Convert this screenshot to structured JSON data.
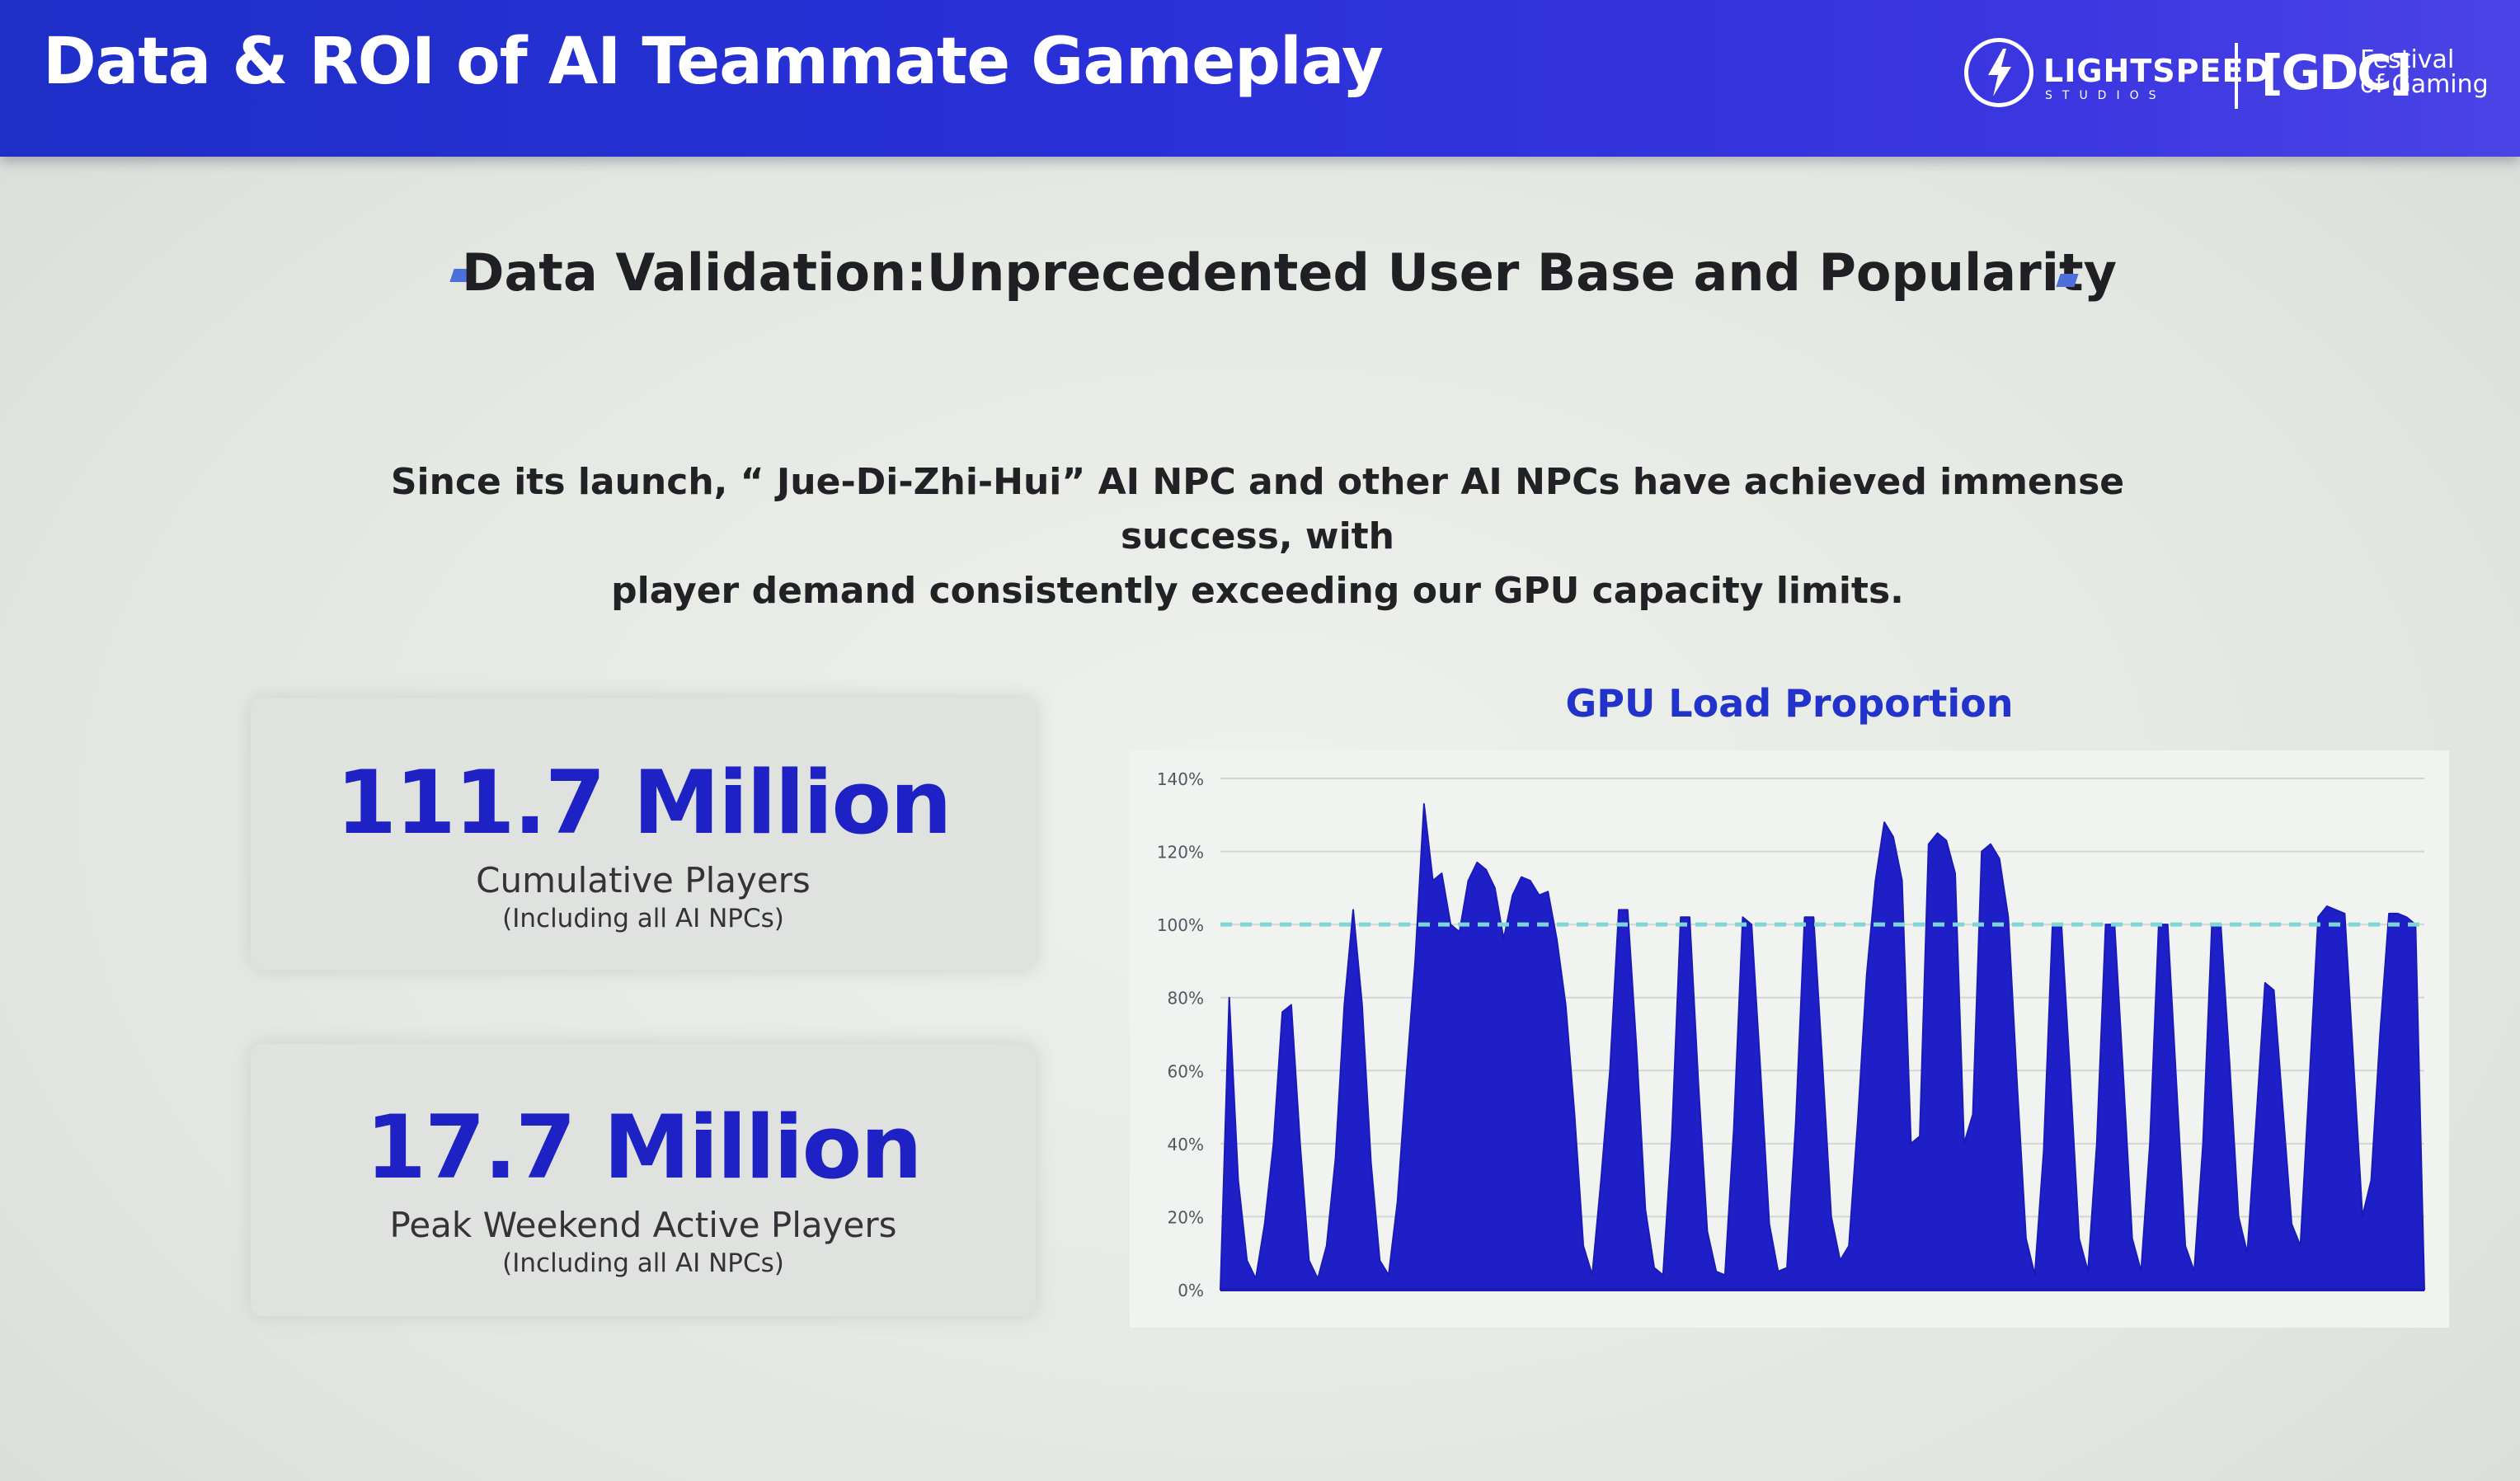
{
  "header": {
    "title": "Data & ROI of AI Teammate Gameplay",
    "logos": {
      "lightspeed_name": "LIGHTSPEED",
      "lightspeed_sub": "STUDIOS",
      "gdc_mark": "[GDC]",
      "gdc_festival_line1": "Festival",
      "gdc_festival_line2": "of Gaming"
    }
  },
  "subheading": "Data Validation:Unprecedented User Base and Popularity",
  "description": {
    "line1": "Since its launch, “ Jue-Di-Zhi-Hui” AI  NPC and other AI NPCs have achieved immense success, with",
    "line2": "player demand consistently exceeding our GPU capacity limits."
  },
  "stats": [
    {
      "value": "111.7 Million",
      "label": "Cumulative Players",
      "note": "(Including all AI NPCs)"
    },
    {
      "value": "17.7 Million",
      "label": "Peak Weekend Active Players",
      "note": "(Including all AI NPCs)"
    }
  ],
  "colors": {
    "accent": "#1e22c4",
    "area_fill": "#1f1fc8",
    "reference_line": "#7fd6d6",
    "header_bg": "#2a30d8"
  },
  "chart_data": {
    "type": "area",
    "title": "GPU Load Proportion",
    "xlabel": "",
    "ylabel": "",
    "ylim": [
      0,
      140
    ],
    "yticks": [
      "0%",
      "20%",
      "40%",
      "60%",
      "80%",
      "100%",
      "120%",
      "140%"
    ],
    "grid": true,
    "reference_line": 100,
    "series": [
      {
        "values": [
          0,
          80,
          30,
          8,
          3,
          18,
          40,
          76,
          78,
          40,
          8,
          3,
          12,
          36,
          78,
          104,
          78,
          35,
          8,
          4,
          24,
          58,
          90,
          133,
          112,
          114,
          100,
          98,
          112,
          117,
          115,
          110,
          96,
          108,
          113,
          112,
          108,
          109,
          96,
          78,
          48,
          12,
          4,
          30,
          60,
          104,
          104,
          66,
          22,
          6,
          4,
          42,
          102,
          102,
          56,
          16,
          5,
          4,
          44,
          102,
          100,
          60,
          18,
          5,
          6,
          46,
          102,
          102,
          62,
          20,
          8,
          12,
          46,
          86,
          112,
          128,
          124,
          112,
          40,
          42,
          122,
          125,
          123,
          114,
          40,
          48,
          120,
          122,
          118,
          102,
          56,
          14,
          4,
          38,
          100,
          100,
          58,
          14,
          5,
          40,
          100,
          100,
          58,
          14,
          5,
          40,
          100,
          100,
          56,
          12,
          5,
          40,
          100,
          100,
          62,
          20,
          10,
          46,
          84,
          82,
          50,
          18,
          12,
          56,
          102,
          105,
          104,
          103,
          62,
          20,
          30,
          70,
          103,
          103,
          102,
          100,
          0
        ]
      }
    ]
  }
}
